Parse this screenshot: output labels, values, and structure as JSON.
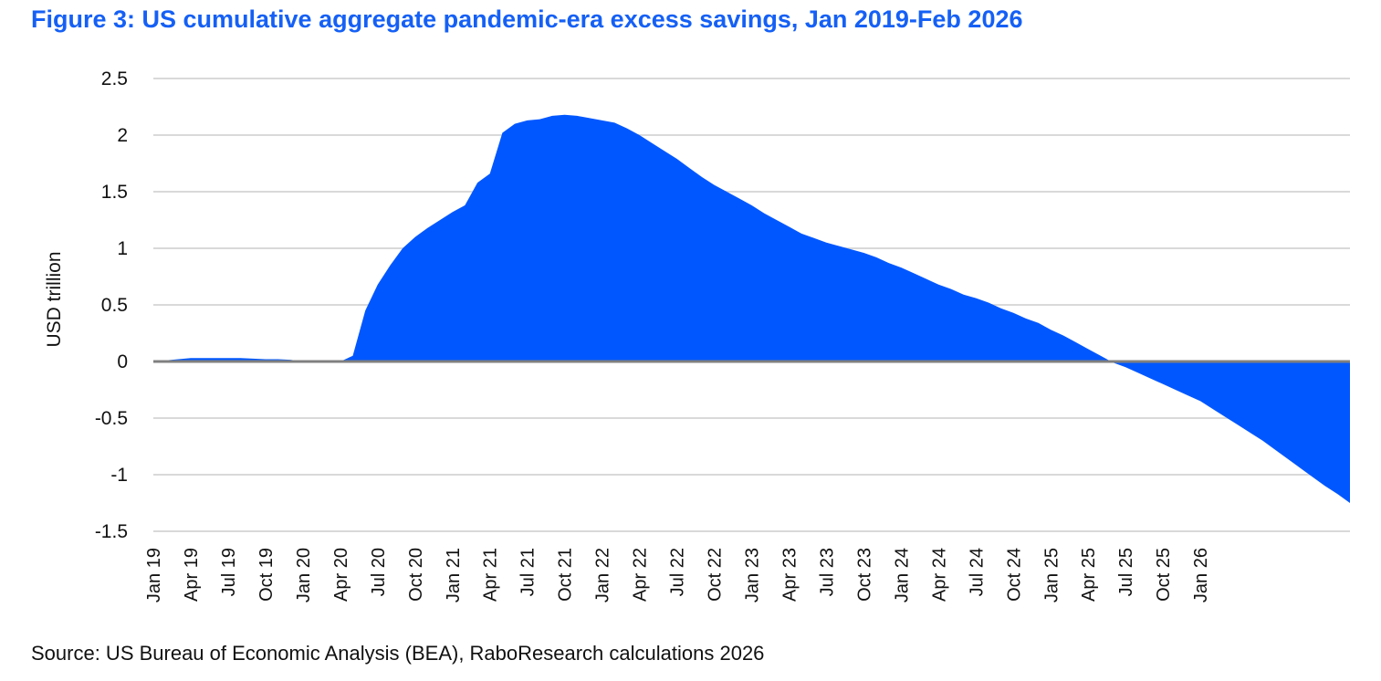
{
  "title": "Figure 3: US cumulative aggregate pandemic-era excess savings, Jan 2019-Feb 2026",
  "source": "Source: US Bureau of Economic Analysis (BEA), RaboResearch calculations 2026",
  "colors": {
    "title": "#1560f5",
    "area": "#0057ff",
    "zero_line": "#808080",
    "grid": "#d9d9d9"
  },
  "chart_data": {
    "type": "area",
    "title": "Figure 3: US cumulative aggregate pandemic-era excess savings, Jan 2019-Feb 2026",
    "xlabel": "",
    "ylabel": "USD trillion",
    "ylim": [
      -1.5,
      2.5
    ],
    "yticks": [
      "2.5",
      "2",
      "1.5",
      "1",
      "0.5",
      "0",
      "-0.5",
      "-1",
      "-1.5"
    ],
    "ytick_values": [
      2.5,
      2,
      1.5,
      1,
      0.5,
      0,
      -0.5,
      -1,
      -1.5
    ],
    "xtick_labels": [
      "Jan 19",
      "Apr 19",
      "Jul 19",
      "Oct 19",
      "Jan 20",
      "Apr 20",
      "Jul 20",
      "Oct 20",
      "Jan 21",
      "Apr 21",
      "Jul 21",
      "Oct 21",
      "Jan 22",
      "Apr 22",
      "Jul 22",
      "Oct 22",
      "Jan 23",
      "Apr 23",
      "Jul 23",
      "Oct 23",
      "Jan 24",
      "Apr 24",
      "Jul 24",
      "Oct 24",
      "Jan 25",
      "Apr 25",
      "Jul 25",
      "Oct 25",
      "Jan 26"
    ],
    "x_start": "Jan 2019",
    "x_end": "Feb 2026",
    "grid": true,
    "legend": "none",
    "series": [
      {
        "values": [
          0.0,
          0.01,
          0.02,
          0.03,
          0.03,
          0.03,
          0.03,
          0.03,
          0.025,
          0.02,
          0.02,
          0.015,
          0.0,
          0.0,
          0.0,
          0.0,
          0.05,
          0.45,
          0.68,
          0.85,
          1.0,
          1.1,
          1.18,
          1.25,
          1.32,
          1.38,
          1.58,
          1.66,
          2.02,
          2.1,
          2.13,
          2.14,
          2.17,
          2.18,
          2.17,
          2.15,
          2.13,
          2.11,
          2.06,
          2.0,
          1.93,
          1.86,
          1.79,
          1.71,
          1.63,
          1.56,
          1.5,
          1.44,
          1.38,
          1.31,
          1.25,
          1.19,
          1.13,
          1.09,
          1.05,
          1.02,
          0.99,
          0.96,
          0.92,
          0.87,
          0.83,
          0.78,
          0.73,
          0.68,
          0.64,
          0.59,
          0.56,
          0.52,
          0.47,
          0.43,
          0.38,
          0.34,
          0.28,
          0.23,
          0.17,
          0.11,
          0.05,
          -0.01,
          -0.05,
          -0.1,
          -0.15,
          -0.2,
          -0.25,
          -0.3,
          -0.35,
          -0.42,
          -0.49,
          -0.56,
          -0.63,
          -0.7,
          -0.78,
          -0.86,
          -0.94,
          -1.02,
          -1.1,
          -1.17,
          -1.25
        ]
      }
    ]
  }
}
